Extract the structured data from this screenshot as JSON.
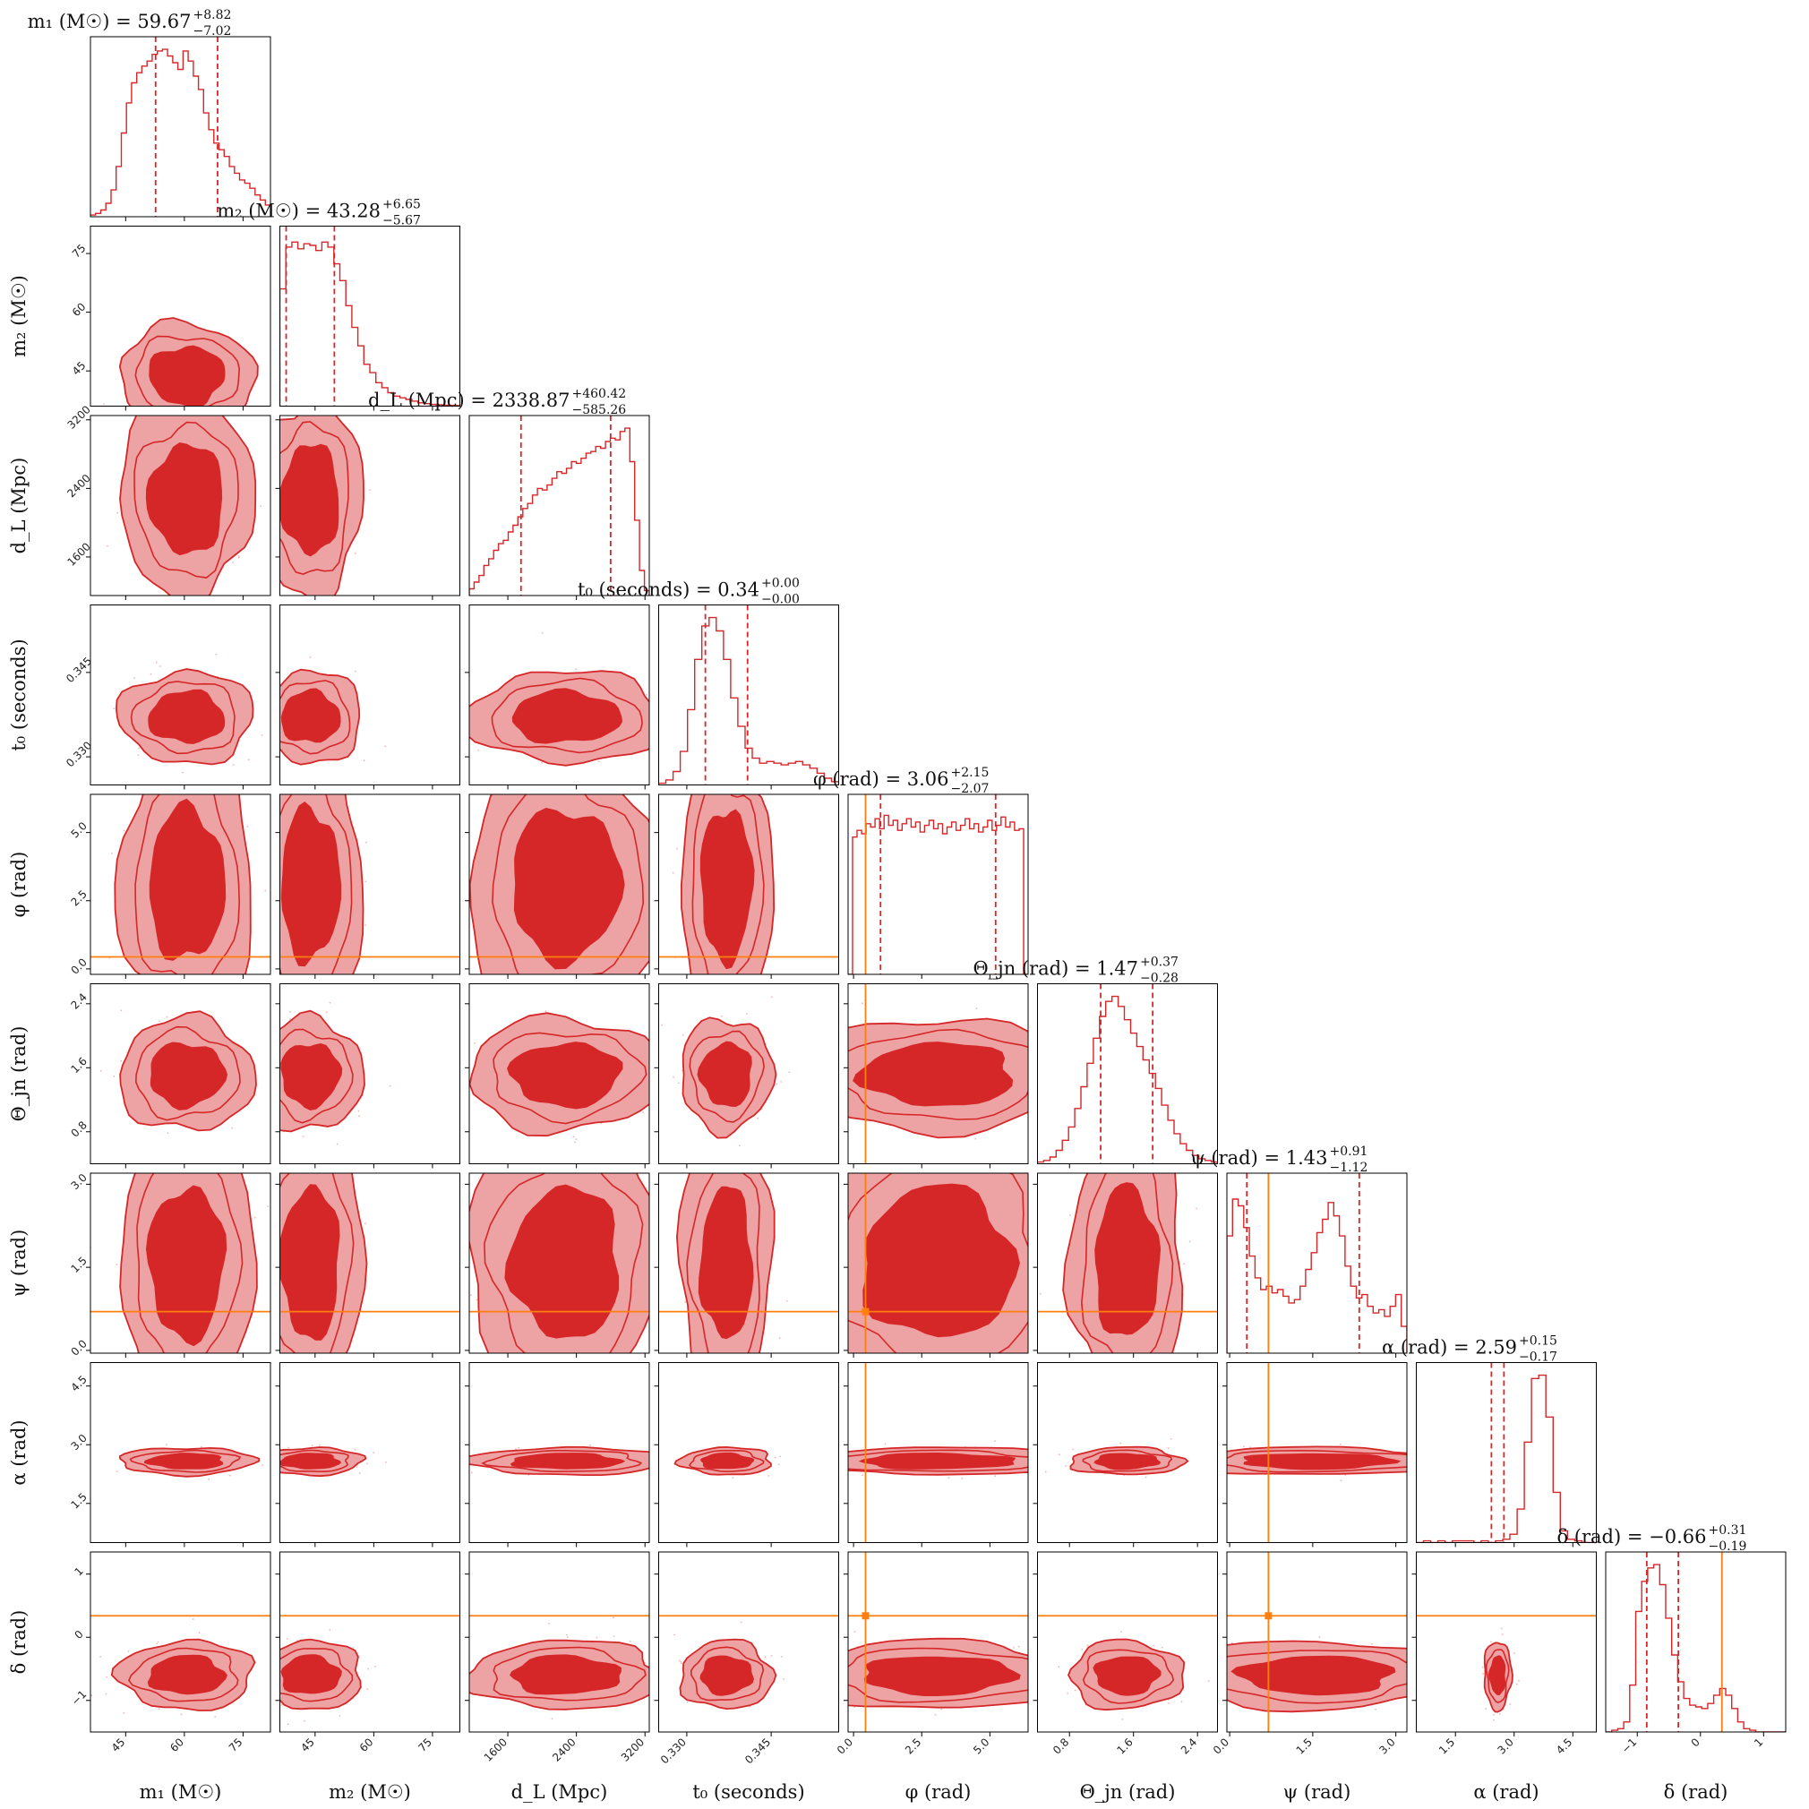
{
  "chart_data": {
    "type": "corner",
    "colors": {
      "posterior": "#d62728",
      "posterior_light": "#eda2a3",
      "injection": "#ff7f0e",
      "frame": "#000000"
    },
    "parameters": [
      {
        "key": "m1",
        "axis_label": "m₁ (M☉)",
        "title_main": "m₁ (M☉) = 59.67",
        "title_sup": "+8.82",
        "title_sub": "−7.02",
        "range": [
          36,
          82
        ],
        "ticks": [
          45,
          60,
          75
        ],
        "tick_labels": [
          "45",
          "60",
          "75"
        ],
        "median": 59.67,
        "credible_interval": [
          52.65,
          68.49
        ],
        "injection": null,
        "hist_heights": [
          0.01,
          0.02,
          0.04,
          0.08,
          0.16,
          0.3,
          0.5,
          0.68,
          0.8,
          0.86,
          0.9,
          0.93,
          0.97,
          0.99,
          1.0,
          0.96,
          0.92,
          0.88,
          0.99,
          0.93,
          0.84,
          0.76,
          0.62,
          0.52,
          0.44,
          0.4,
          0.36,
          0.3,
          0.26,
          0.22,
          0.2,
          0.17,
          0.13,
          0.1,
          0.07
        ]
      },
      {
        "key": "m2",
        "axis_label": "m₂ (M☉)",
        "title_main": "m₂ (M☉) = 43.28",
        "title_sup": "+6.65",
        "title_sub": "−5.67",
        "range": [
          36,
          82
        ],
        "ticks": [
          45,
          60,
          75
        ],
        "tick_labels": [
          "45",
          "60",
          "75"
        ],
        "median": 43.28,
        "credible_interval": [
          37.61,
          49.93
        ],
        "injection": null,
        "hist_heights": [
          0.7,
          0.95,
          0.98,
          0.94,
          0.97,
          0.96,
          0.93,
          0.98,
          0.95,
          0.85,
          0.75,
          0.6,
          0.47,
          0.36,
          0.25,
          0.2,
          0.14,
          0.11,
          0.08,
          0.06,
          0.05,
          0.04,
          0.03,
          0.02,
          0.015,
          0.01,
          0.008,
          0.006,
          0.005,
          0.004
        ]
      },
      {
        "key": "dL",
        "axis_label": "d_L (Mpc)",
        "title_main": "d_L (Mpc) = 2338.87",
        "title_sup": "+460.42",
        "title_sub": "−585.26",
        "range": [
          1150,
          3250
        ],
        "ticks": [
          1600,
          2400,
          3200
        ],
        "tick_labels": [
          "1600",
          "2400",
          "3200"
        ],
        "median": 2338.87,
        "credible_interval": [
          1753.61,
          2799.29
        ],
        "injection": null,
        "hist_heights": [
          0.04,
          0.08,
          0.12,
          0.18,
          0.22,
          0.27,
          0.31,
          0.33,
          0.38,
          0.42,
          0.47,
          0.52,
          0.55,
          0.6,
          0.64,
          0.63,
          0.66,
          0.7,
          0.74,
          0.73,
          0.76,
          0.8,
          0.79,
          0.82,
          0.85,
          0.86,
          0.89,
          0.88,
          0.92,
          0.94,
          0.93,
          0.98,
          1.0,
          0.8,
          0.45,
          0.15,
          0.03
        ]
      },
      {
        "key": "t0",
        "axis_label": "t₀ (seconds)",
        "title_main": "t₀ (seconds) = 0.34",
        "title_sup": "+0.00",
        "title_sub": "−0.00",
        "range": [
          0.325,
          0.357
        ],
        "ticks": [
          0.33,
          0.345
        ],
        "tick_labels": [
          "0.330",
          "0.345"
        ],
        "median": 0.3355,
        "credible_interval": [
          0.3333,
          0.3408
        ],
        "injection": null,
        "hist_heights": [
          0.01,
          0.03,
          0.08,
          0.2,
          0.45,
          0.75,
          0.95,
          1.0,
          0.92,
          0.75,
          0.52,
          0.35,
          0.22,
          0.16,
          0.13,
          0.14,
          0.13,
          0.12,
          0.13,
          0.14,
          0.12,
          0.1,
          0.07,
          0.04,
          0.02
        ]
      },
      {
        "key": "phi",
        "axis_label": "φ (rad)",
        "title_main": "φ (rad) = 3.06",
        "title_sup": "+2.15",
        "title_sub": "−2.07",
        "range": [
          -0.2,
          6.4
        ],
        "ticks": [
          0.0,
          2.5,
          5.0
        ],
        "tick_labels": [
          "0.0",
          "2.5",
          "5.0"
        ],
        "median": 3.06,
        "credible_interval": [
          0.99,
          5.21
        ],
        "injection": 0.44,
        "hist_heights": [
          0.0,
          0.82,
          0.86,
          0.84,
          0.9,
          0.88,
          0.93,
          0.87,
          0.95,
          0.89,
          0.92,
          0.86,
          0.9,
          0.93,
          0.88,
          0.91,
          0.85,
          0.89,
          0.92,
          0.87,
          0.9,
          0.84,
          0.88,
          0.91,
          0.86,
          0.89,
          0.93,
          0.87,
          0.9,
          0.85,
          0.88,
          0.92,
          0.86,
          0.89,
          0.94,
          0.88,
          0.91,
          0.86,
          0.87,
          0.0
        ]
      },
      {
        "key": "theta_jn",
        "axis_label": "Θ_jn (rad)",
        "title_main": "Θ_jn (rad) = 1.47",
        "title_sup": "+0.37",
        "title_sub": "−0.28",
        "range": [
          0.4,
          2.65
        ],
        "ticks": [
          0.8,
          1.6,
          2.4
        ],
        "tick_labels": [
          "0.8",
          "1.6",
          "2.4"
        ],
        "median": 1.47,
        "credible_interval": [
          1.19,
          1.84
        ],
        "injection": null,
        "hist_heights": [
          0.01,
          0.02,
          0.04,
          0.08,
          0.14,
          0.22,
          0.33,
          0.46,
          0.6,
          0.75,
          0.88,
          0.97,
          1.0,
          0.94,
          0.86,
          0.78,
          0.7,
          0.62,
          0.54,
          0.45,
          0.35,
          0.26,
          0.18,
          0.12,
          0.08,
          0.05,
          0.03,
          0.02,
          0.01
        ]
      },
      {
        "key": "psi",
        "axis_label": "ψ (rad)",
        "title_main": "ψ (rad) = 1.43",
        "title_sup": "+0.91",
        "title_sub": "−1.12",
        "range": [
          -0.05,
          3.2
        ],
        "ticks": [
          0.0,
          1.5,
          3.0
        ],
        "tick_labels": [
          "0.0",
          "1.5",
          "3.0"
        ],
        "median": 1.43,
        "credible_interval": [
          0.31,
          2.34
        ],
        "injection": 0.7,
        "hist_heights": [
          0.7,
          0.92,
          0.88,
          0.75,
          0.58,
          0.45,
          0.38,
          0.4,
          0.36,
          0.38,
          0.34,
          0.3,
          0.32,
          0.4,
          0.5,
          0.6,
          0.72,
          0.8,
          0.9,
          0.82,
          0.7,
          0.52,
          0.4,
          0.33,
          0.35,
          0.28,
          0.24,
          0.26,
          0.22,
          0.28,
          0.35,
          0.16
        ]
      },
      {
        "key": "alpha",
        "axis_label": "α (rad)",
        "title_main": "α (rad) = 2.59",
        "title_sup": "+0.15",
        "title_sub": "−0.17",
        "range": [
          0.5,
          5.1
        ],
        "ticks": [
          1.5,
          3.0,
          4.5
        ],
        "tick_labels": [
          "1.5",
          "3.0",
          "4.5"
        ],
        "median": 2.59,
        "credible_interval": [
          2.42,
          2.74
        ],
        "injection": null,
        "hist_heights": [
          0.0,
          0.01,
          0.0,
          0.01,
          0.0,
          0.01,
          0.01,
          0.01,
          0.0,
          0.01,
          0.0,
          0.01,
          0.02,
          0.05,
          0.2,
          0.6,
          0.98,
          1.0,
          0.75,
          0.3,
          0.07,
          0.02,
          0.01,
          0.0,
          0.0
        ]
      },
      {
        "key": "delta",
        "axis_label": "δ (rad)",
        "title_main": "δ (rad) = −0.66",
        "title_sup": "+0.31",
        "title_sub": "−0.19",
        "range": [
          -1.5,
          1.35
        ],
        "ticks": [
          -1.0,
          0.0,
          1.0
        ],
        "tick_labels": [
          "−1",
          "0",
          "1"
        ],
        "median": -0.66,
        "credible_interval": [
          -0.85,
          -0.35
        ],
        "injection": 0.34,
        "hist_heights": [
          0.0,
          0.01,
          0.02,
          0.06,
          0.28,
          0.72,
          0.9,
          0.98,
          1.0,
          0.88,
          0.68,
          0.46,
          0.3,
          0.2,
          0.16,
          0.15,
          0.14,
          0.17,
          0.22,
          0.26,
          0.22,
          0.14,
          0.06,
          0.02,
          0.01,
          0.0,
          0.0,
          0.0,
          0.0,
          0.0
        ]
      }
    ]
  }
}
